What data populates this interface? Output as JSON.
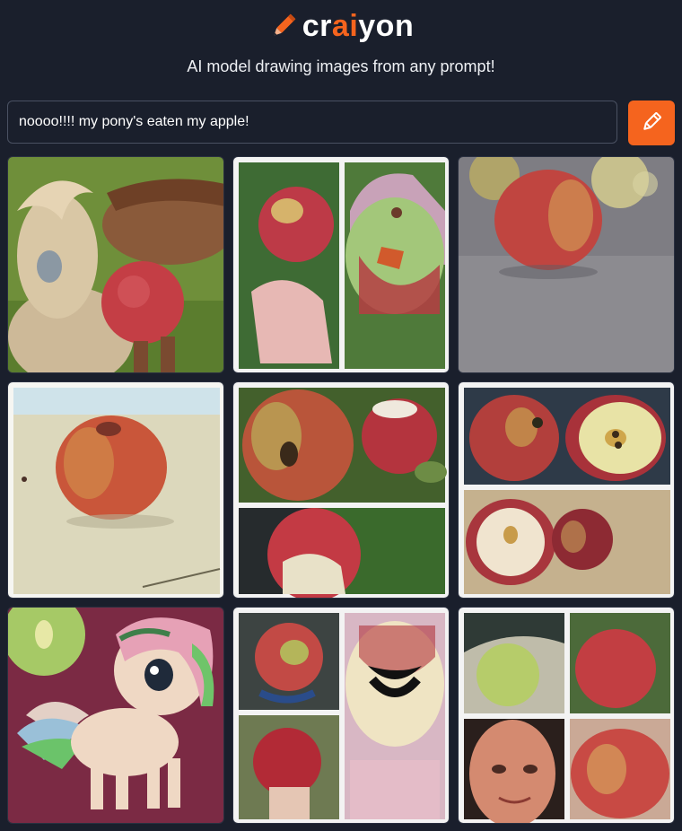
{
  "header": {
    "logo_prefix": "cr",
    "logo_accent": "ai",
    "logo_suffix": "yon",
    "tagline": "AI model drawing images from any prompt!"
  },
  "search": {
    "value": "noooo!!!! my pony's eaten my apple!",
    "button_icon": "pencil-icon"
  },
  "colors": {
    "background": "#1a1f2c",
    "accent": "#f5641e",
    "input_border": "#4a5162"
  },
  "results": [
    {
      "name": "result-image-1",
      "depicts": "horse-with-apple"
    },
    {
      "name": "result-image-2",
      "depicts": "apple-collage"
    },
    {
      "name": "result-image-3",
      "depicts": "apple-on-carpet"
    },
    {
      "name": "result-image-4",
      "depicts": "apple-on-table"
    },
    {
      "name": "result-image-5",
      "depicts": "apple-collage"
    },
    {
      "name": "result-image-6",
      "depicts": "apple-halves-collage"
    },
    {
      "name": "result-image-7",
      "depicts": "cartoon-pony"
    },
    {
      "name": "result-image-8",
      "depicts": "bitten-apple-collage"
    },
    {
      "name": "result-image-9",
      "depicts": "apple-and-face-collage"
    }
  ]
}
